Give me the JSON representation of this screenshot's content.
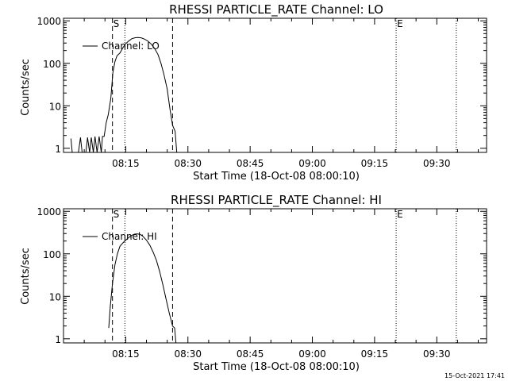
{
  "footer": {
    "timestamp": "15-Oct-2021 17:41"
  },
  "chart_data": [
    {
      "type": "line",
      "title": "RHESSI PARTICLE_RATE Channel: LO",
      "xlabel": "Start Time (18-Oct-08 08:00:10)",
      "ylabel": "Counts/sec",
      "y_scale": "log",
      "ylim": [
        0.8,
        1150
      ],
      "xlim_minutes": [
        0,
        102
      ],
      "x_tick_labels": [
        "08:15",
        "08:30",
        "08:45",
        "09:00",
        "09:15",
        "09:30"
      ],
      "x_tick_minutes": [
        15,
        30,
        45,
        60,
        75,
        90
      ],
      "y_tick_labels": [
        "1",
        "10",
        "100",
        "1000"
      ],
      "y_tick_values": [
        1,
        10,
        100,
        1000
      ],
      "legend": {
        "placement": "top-left",
        "label": "Channel: LO"
      },
      "markers": [
        {
          "label": "S",
          "minute": 11.8,
          "style": "dashed"
        },
        {
          "label": "",
          "minute": 14.8,
          "style": "dotted"
        },
        {
          "label": "",
          "minute": 26.3,
          "style": "dashed"
        },
        {
          "label": "E",
          "minute": 80.2,
          "style": "dotted"
        },
        {
          "label": "",
          "minute": 94.7,
          "style": "dotted"
        }
      ],
      "series": [
        {
          "x": [
            1.8,
            2.1,
            2.4,
            3.2,
            3.6,
            4.1,
            4.5,
            5.4,
            5.8,
            6.3,
            6.7,
            7.2,
            7.6,
            8.1,
            8.6,
            9.1,
            9.4,
            9.8,
            10.3,
            10.8,
            11.4,
            11.9,
            12.4,
            12.9,
            13.6,
            14.3,
            15.0,
            15.8,
            16.5,
            17.3,
            18.0,
            18.8,
            19.6,
            20.4,
            21.2,
            22.0,
            22.8,
            23.5,
            24.2,
            25.0,
            25.7,
            26.3,
            26.9,
            27.3
          ],
          "y": [
            1.7,
            0.8,
            0.8,
            0.8,
            0.8,
            1.8,
            0.8,
            0.8,
            1.8,
            0.8,
            1.8,
            0.8,
            1.9,
            0.8,
            1.9,
            0.8,
            1.9,
            1.9,
            4.0,
            6.2,
            15,
            60,
            110,
            150,
            175,
            230,
            290,
            340,
            380,
            400,
            405,
            395,
            370,
            330,
            280,
            220,
            160,
            100,
            55,
            25,
            8,
            3.5,
            2.5,
            0.8
          ]
        }
      ]
    },
    {
      "type": "line",
      "title": "RHESSI PARTICLE_RATE Channel: HI",
      "xlabel": "Start Time (18-Oct-08 08:00:10)",
      "ylabel": "Counts/sec",
      "y_scale": "log",
      "ylim": [
        0.8,
        1150
      ],
      "xlim_minutes": [
        0,
        102
      ],
      "x_tick_labels": [
        "08:15",
        "08:30",
        "08:45",
        "09:00",
        "09:15",
        "09:30"
      ],
      "x_tick_minutes": [
        15,
        30,
        45,
        60,
        75,
        90
      ],
      "y_tick_labels": [
        "1",
        "10",
        "100",
        "1000"
      ],
      "y_tick_values": [
        1,
        10,
        100,
        1000
      ],
      "legend": {
        "placement": "top-left",
        "label": "Channel: HI"
      },
      "markers": [
        {
          "label": "S",
          "minute": 11.8,
          "style": "dashed"
        },
        {
          "label": "",
          "minute": 14.8,
          "style": "dotted"
        },
        {
          "label": "",
          "minute": 26.3,
          "style": "dashed"
        },
        {
          "label": "E",
          "minute": 80.2,
          "style": "dotted"
        },
        {
          "label": "",
          "minute": 94.7,
          "style": "dotted"
        }
      ],
      "series": [
        {
          "x": [
            10.9,
            11.3,
            11.8,
            12.4,
            13.0,
            13.6,
            14.3,
            15.0,
            15.7,
            16.4,
            17.1,
            17.8,
            18.5,
            19.2,
            20.0,
            20.8,
            21.6,
            22.4,
            23.2,
            24.0,
            24.8,
            25.5,
            26.3,
            26.8,
            27.1
          ],
          "y": [
            1.8,
            6,
            20,
            55,
            100,
            150,
            180,
            210,
            240,
            270,
            290,
            295,
            285,
            255,
            210,
            160,
            110,
            70,
            38,
            18,
            8,
            4,
            2,
            1.8,
            0.8
          ]
        }
      ]
    }
  ]
}
